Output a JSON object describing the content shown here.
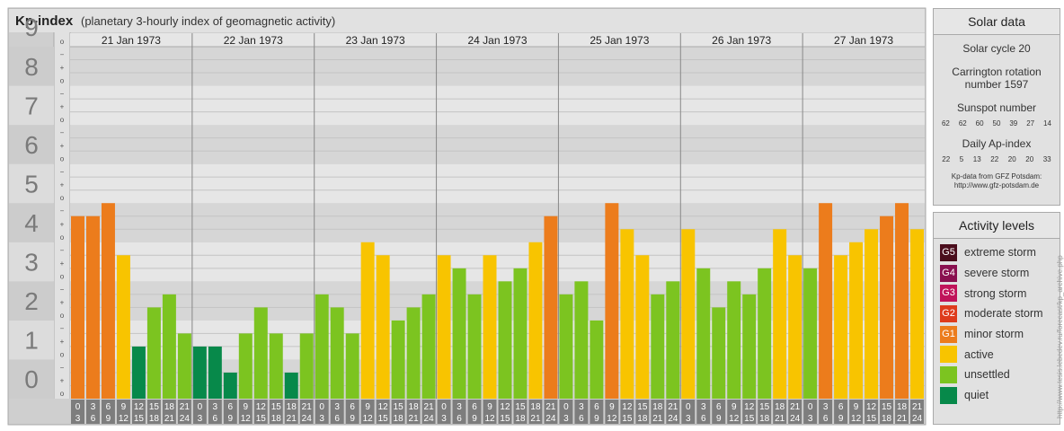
{
  "header": {
    "title": "Kp-index",
    "subtitle": "(planetary 3-hourly index of geomagnetic activity)"
  },
  "chart_data": {
    "type": "bar",
    "title": "Kp-index",
    "subtitle": "(planetary 3-hourly index of geomagnetic activity)",
    "ylim": [
      0,
      9
    ],
    "y_ticks": [
      "0",
      "1",
      "2",
      "3",
      "4",
      "5",
      "6",
      "7",
      "8",
      "9"
    ],
    "y_subticks": [
      "o",
      "+",
      "−"
    ],
    "days": [
      "21 Jan 1973",
      "22 Jan 1973",
      "23 Jan 1973",
      "24 Jan 1973",
      "25 Jan 1973",
      "26 Jan 1973",
      "27 Jan 1973"
    ],
    "interval_labels": [
      [
        "0",
        "3"
      ],
      [
        "3",
        "6"
      ],
      [
        "6",
        "9"
      ],
      [
        "9",
        "12"
      ],
      [
        "12",
        "15"
      ],
      [
        "15",
        "18"
      ],
      [
        "18",
        "21"
      ],
      [
        "21",
        "24"
      ]
    ],
    "values": [
      [
        4.667,
        4.667,
        5.0,
        3.667,
        1.333,
        2.333,
        2.667,
        1.667
      ],
      [
        1.333,
        1.333,
        0.667,
        1.667,
        2.333,
        1.667,
        0.667,
        1.667
      ],
      [
        2.667,
        2.333,
        1.667,
        4.0,
        3.667,
        2.0,
        2.333,
        2.667
      ],
      [
        3.667,
        3.333,
        2.667,
        3.667,
        3.0,
        3.333,
        4.0,
        4.667
      ],
      [
        2.667,
        3.0,
        2.0,
        5.0,
        4.333,
        3.667,
        2.667,
        3.0
      ],
      [
        4.333,
        3.333,
        2.333,
        3.0,
        2.667,
        3.333,
        4.333,
        3.667
      ],
      [
        3.333,
        5.0,
        3.667,
        4.0,
        4.333,
        4.667,
        5.0,
        4.333
      ]
    ],
    "grid": true
  },
  "solar": {
    "title": "Solar data",
    "cycle": "Solar cycle 20",
    "carrington_line1": "Carrington rotation",
    "carrington_line2": "number 1597",
    "sunspot_title": "Sunspot number",
    "sunspot_values": [
      "62",
      "62",
      "60",
      "50",
      "39",
      "27",
      "14"
    ],
    "ap_title": "Daily Ap-index",
    "ap_values": [
      "22",
      "5",
      "13",
      "22",
      "20",
      "20",
      "33"
    ],
    "credit_line1": "Kp-data from GFZ Potsdam:",
    "credit_line2": "http://www.gfz-potsdam.de"
  },
  "levels": {
    "title": "Activity levels",
    "items": [
      {
        "code": "G5",
        "label": "extreme storm",
        "color": "#4a0d1c"
      },
      {
        "code": "G4",
        "label": "severe storm",
        "color": "#8a1050"
      },
      {
        "code": "G3",
        "label": "strong storm",
        "color": "#c0135a"
      },
      {
        "code": "G2",
        "label": "moderate storm",
        "color": "#de3b1c"
      },
      {
        "code": "G1",
        "label": "minor storm",
        "color": "#ec7c1c"
      },
      {
        "code": "",
        "label": "active",
        "color": "#f8c400"
      },
      {
        "code": "",
        "label": "unsettled",
        "color": "#7cc420"
      },
      {
        "code": "",
        "label": "quiet",
        "color": "#07894a"
      }
    ]
  },
  "copyright": "http://www.tesis.lebedev.ru/forecast/kp_archive.php",
  "colors": {
    "quiet": "#07894a",
    "unsettled": "#7cc420",
    "active": "#f8c400",
    "minor": "#ec7c1c"
  }
}
